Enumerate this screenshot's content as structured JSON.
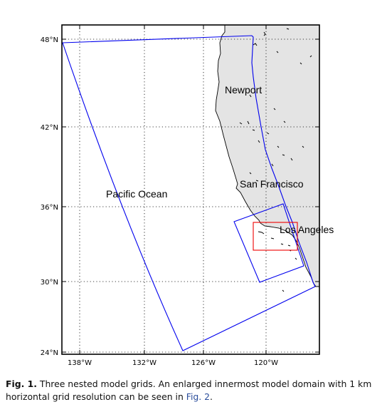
{
  "map": {
    "lat_ticks": [
      "48°N",
      "42°N",
      "36°N",
      "30°N",
      "24°N"
    ],
    "lon_ticks": [
      "138°W",
      "132°W",
      "126°W",
      "120°W"
    ],
    "places": [
      "Newport",
      "Pacific Ocean",
      "San Francisco",
      "Los Angeles"
    ],
    "colors": {
      "land": "#e4e4e4",
      "coast": "#000000",
      "outer_grid": "#0000ee",
      "inner_grid": "#ee0000",
      "graticule": "#000000"
    }
  },
  "caption": {
    "fig_label": "Fig. 1.",
    "text1": " Three nested model grids. An enlarged innermost model domain with 1 km horizontal grid resolution can be seen in ",
    "link": "Fig. 2",
    "text2": "."
  }
}
